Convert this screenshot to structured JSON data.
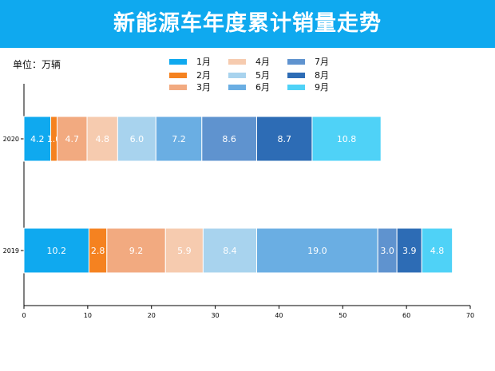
{
  "header": {
    "title": "新能源车年度累计销量走势"
  },
  "unit_label": "单位：万辆",
  "chart_data": {
    "type": "bar",
    "orientation": "horizontal",
    "stacked": true,
    "title": "新能源车年度累计销量走势",
    "unit": "万辆",
    "categories": [
      "2020",
      "2019"
    ],
    "xlim": [
      0,
      70
    ],
    "xticks": [
      0,
      10,
      20,
      30,
      40,
      50,
      60,
      70
    ],
    "legend_position": "top",
    "series": [
      {
        "name": "1月",
        "color": "#0fa9ef",
        "values": [
          4.2,
          10.2
        ]
      },
      {
        "name": "2月",
        "color": "#f58220",
        "values": [
          1.0,
          2.8
        ]
      },
      {
        "name": "3月",
        "color": "#f2aa80",
        "values": [
          4.7,
          9.2
        ]
      },
      {
        "name": "4月",
        "color": "#f6cbaf",
        "values": [
          4.8,
          5.9
        ]
      },
      {
        "name": "5月",
        "color": "#a8d3ee",
        "values": [
          6.0,
          8.4
        ]
      },
      {
        "name": "6月",
        "color": "#6aaee3",
        "values": [
          7.2,
          19.0
        ]
      },
      {
        "name": "7月",
        "color": "#5f93cf",
        "values": [
          8.6,
          3.0
        ]
      },
      {
        "name": "8月",
        "color": "#2d6cb5",
        "values": [
          8.7,
          3.9
        ]
      },
      {
        "name": "9月",
        "color": "#4fd2f7",
        "values": [
          10.8,
          4.8
        ]
      }
    ]
  }
}
